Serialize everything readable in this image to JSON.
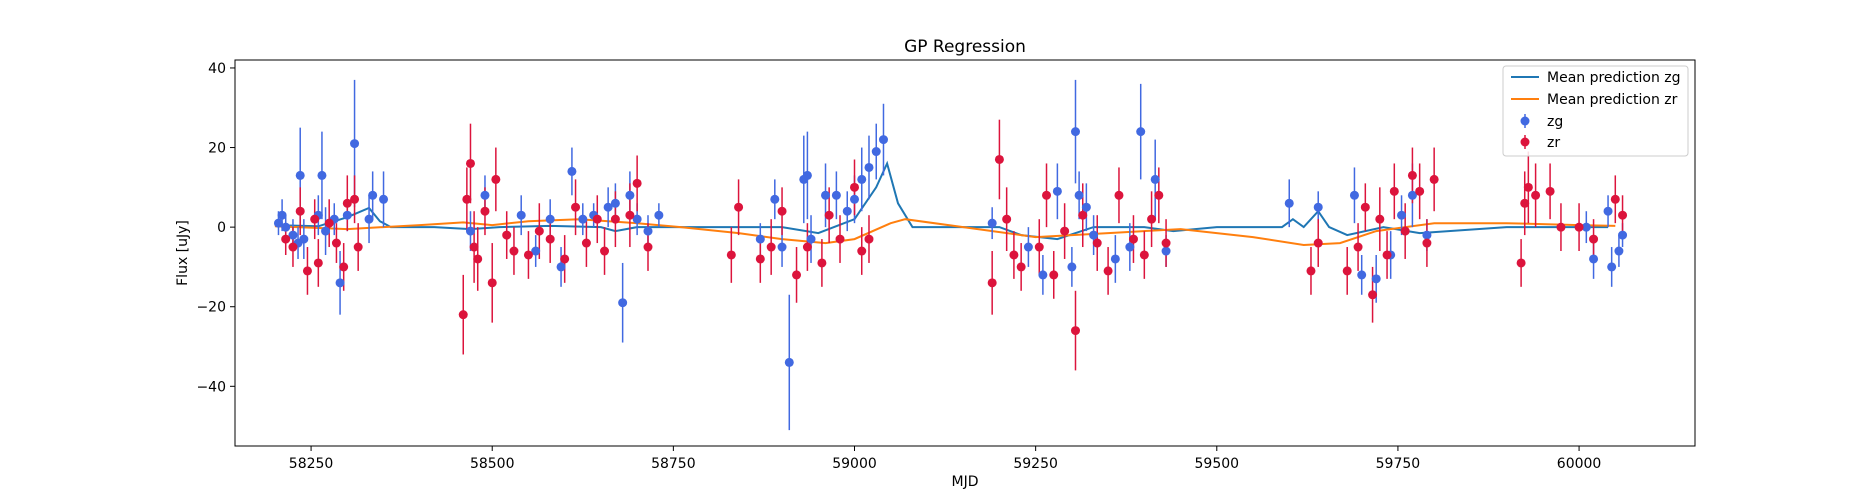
{
  "chart_data": {
    "type": "scatter",
    "title": "GP Regression",
    "xlabel": "MJD",
    "ylabel": "Flux [uJy]",
    "xlim": [
      58145,
      60160
    ],
    "ylim": [
      -55,
      42
    ],
    "xticks": [
      58250,
      58500,
      58750,
      59000,
      59250,
      59500,
      59750,
      60000
    ],
    "yticks": [
      -40,
      -20,
      0,
      20,
      40
    ],
    "ytick_labels": [
      "−40",
      "−20",
      "0",
      "20",
      "40"
    ],
    "grid": false,
    "legend_position": "top-right",
    "colors": {
      "zg_line": "#1f77b4",
      "zr_line": "#ff7f0e",
      "zg_points": "#4169e1",
      "zr_points": "#dc143c"
    },
    "lines": [
      {
        "name": "Mean prediction zg",
        "x": [
          58200,
          58260,
          58300,
          58330,
          58345,
          58360,
          58420,
          58470,
          58510,
          58580,
          58650,
          58670,
          58700,
          58760,
          58840,
          58900,
          58950,
          59000,
          59030,
          59045,
          59060,
          59080,
          59200,
          59230,
          59280,
          59330,
          59400,
          59440,
          59500,
          59590,
          59605,
          59620,
          59640,
          59655,
          59680,
          59730,
          59780,
          59900,
          60040
        ],
        "y": [
          0.5,
          0.2,
          2.5,
          4.8,
          1.5,
          0,
          0,
          -0.5,
          0,
          0.3,
          0,
          -1,
          0,
          0,
          0,
          0,
          -1.5,
          2,
          10,
          16,
          6,
          0,
          0,
          -2,
          -3,
          0,
          0,
          -1,
          0,
          0,
          2,
          0,
          4,
          0,
          -2,
          0,
          -1.5,
          0,
          0
        ]
      },
      {
        "name": "Mean prediction zr",
        "x": [
          58200,
          58300,
          58400,
          58460,
          58500,
          58550,
          58620,
          58700,
          58760,
          58840,
          58900,
          58960,
          59000,
          59050,
          59070,
          59150,
          59250,
          59350,
          59450,
          59550,
          59620,
          59670,
          59720,
          59800,
          59900,
          60000,
          60050
        ],
        "y": [
          0.2,
          -0.5,
          0.5,
          1.2,
          0.5,
          1.5,
          2,
          1,
          0,
          -1.5,
          -3,
          -4,
          -3,
          1,
          2,
          0,
          -2.5,
          -1.5,
          -0.5,
          -2.5,
          -4.5,
          -4,
          -1,
          1,
          1,
          0.5,
          0.3
        ]
      }
    ],
    "series": [
      {
        "name": "zg",
        "points": [
          [
            58205,
            1,
            3
          ],
          [
            58210,
            3,
            4
          ],
          [
            58215,
            0,
            3
          ],
          [
            58225,
            -2,
            4
          ],
          [
            58232,
            -4,
            4
          ],
          [
            58235,
            13,
            12
          ],
          [
            58240,
            -3,
            5
          ],
          [
            58260,
            3,
            5
          ],
          [
            58265,
            13,
            11
          ],
          [
            58270,
            -1,
            6
          ],
          [
            58282,
            2,
            4
          ],
          [
            58290,
            -14,
            8
          ],
          [
            58300,
            3,
            4
          ],
          [
            58310,
            21,
            16
          ],
          [
            58330,
            2,
            6
          ],
          [
            58335,
            8,
            6
          ],
          [
            58350,
            7,
            7
          ],
          [
            58470,
            -1,
            5
          ],
          [
            58490,
            8,
            5
          ],
          [
            58540,
            3,
            5
          ],
          [
            58560,
            -6,
            4
          ],
          [
            58580,
            2,
            5
          ],
          [
            58595,
            -10,
            5
          ],
          [
            58610,
            14,
            6
          ],
          [
            58625,
            2,
            4
          ],
          [
            58640,
            3,
            3
          ],
          [
            58660,
            5,
            5
          ],
          [
            58670,
            6,
            5
          ],
          [
            58680,
            -19,
            10
          ],
          [
            58690,
            8,
            6
          ],
          [
            58700,
            2,
            4
          ],
          [
            58715,
            -1,
            4
          ],
          [
            58730,
            3,
            3
          ],
          [
            58870,
            -3,
            4
          ],
          [
            58890,
            7,
            5
          ],
          [
            58900,
            -5,
            5
          ],
          [
            58910,
            -34,
            17
          ],
          [
            58930,
            12,
            11
          ],
          [
            58935,
            13,
            11
          ],
          [
            58940,
            -3,
            6
          ],
          [
            58960,
            8,
            8
          ],
          [
            58975,
            8,
            6
          ],
          [
            58990,
            4,
            5
          ],
          [
            59000,
            7,
            6
          ],
          [
            59010,
            12,
            8
          ],
          [
            59020,
            15,
            8
          ],
          [
            59030,
            19,
            7
          ],
          [
            59040,
            22,
            9
          ],
          [
            59190,
            1,
            4
          ],
          [
            59240,
            -5,
            5
          ],
          [
            59260,
            -12,
            5
          ],
          [
            59280,
            9,
            7
          ],
          [
            59300,
            -10,
            5
          ],
          [
            59305,
            24,
            13
          ],
          [
            59310,
            8,
            6
          ],
          [
            59320,
            5,
            6
          ],
          [
            59330,
            -2,
            5
          ],
          [
            59360,
            -8,
            6
          ],
          [
            59380,
            -5,
            6
          ],
          [
            59395,
            24,
            12
          ],
          [
            59415,
            12,
            10
          ],
          [
            59430,
            -6,
            4
          ],
          [
            59600,
            6,
            6
          ],
          [
            59640,
            5,
            4
          ],
          [
            59690,
            8,
            7
          ],
          [
            59700,
            -12,
            5
          ],
          [
            59720,
            -13,
            6
          ],
          [
            59740,
            -7,
            6
          ],
          [
            59755,
            3,
            5
          ],
          [
            59770,
            8,
            8
          ],
          [
            59790,
            -2,
            4
          ],
          [
            60010,
            0,
            4
          ],
          [
            60020,
            -8,
            5
          ],
          [
            60040,
            4,
            4
          ],
          [
            60045,
            -10,
            5
          ],
          [
            60055,
            -6,
            4
          ],
          [
            60060,
            -2,
            3
          ]
        ]
      },
      {
        "name": "zr",
        "points": [
          [
            58215,
            -3,
            4
          ],
          [
            58225,
            -5,
            5
          ],
          [
            58235,
            4,
            6
          ],
          [
            58245,
            -11,
            6
          ],
          [
            58255,
            2,
            5
          ],
          [
            58260,
            -9,
            6
          ],
          [
            58275,
            1,
            6
          ],
          [
            58285,
            -4,
            5
          ],
          [
            58295,
            -10,
            6
          ],
          [
            58300,
            6,
            7
          ],
          [
            58310,
            7,
            6
          ],
          [
            58315,
            -5,
            6
          ],
          [
            58460,
            -22,
            10
          ],
          [
            58465,
            7,
            8
          ],
          [
            58470,
            16,
            10
          ],
          [
            58475,
            -5,
            9
          ],
          [
            58480,
            -8,
            8
          ],
          [
            58490,
            4,
            6
          ],
          [
            58500,
            -14,
            10
          ],
          [
            58505,
            12,
            8
          ],
          [
            58520,
            -2,
            6
          ],
          [
            58530,
            -6,
            6
          ],
          [
            58550,
            -7,
            6
          ],
          [
            58565,
            -1,
            7
          ],
          [
            58580,
            -3,
            6
          ],
          [
            58600,
            -8,
            6
          ],
          [
            58615,
            5,
            7
          ],
          [
            58630,
            -4,
            6
          ],
          [
            58645,
            2,
            6
          ],
          [
            58655,
            -6,
            6
          ],
          [
            58670,
            2,
            7
          ],
          [
            58690,
            3,
            8
          ],
          [
            58700,
            11,
            7
          ],
          [
            58715,
            -5,
            6
          ],
          [
            58830,
            -7,
            7
          ],
          [
            58840,
            5,
            7
          ],
          [
            58870,
            -8,
            6
          ],
          [
            58885,
            -5,
            7
          ],
          [
            58900,
            4,
            6
          ],
          [
            58920,
            -12,
            7
          ],
          [
            58935,
            -5,
            6
          ],
          [
            58955,
            -9,
            6
          ],
          [
            58965,
            3,
            7
          ],
          [
            58980,
            -3,
            6
          ],
          [
            59000,
            10,
            7
          ],
          [
            59010,
            -6,
            6
          ],
          [
            59020,
            -3,
            6
          ],
          [
            59190,
            -14,
            8
          ],
          [
            59200,
            17,
            10
          ],
          [
            59210,
            2,
            8
          ],
          [
            59220,
            -7,
            6
          ],
          [
            59230,
            -10,
            6
          ],
          [
            59255,
            -5,
            7
          ],
          [
            59265,
            8,
            8
          ],
          [
            59275,
            -12,
            6
          ],
          [
            59290,
            -1,
            7
          ],
          [
            59305,
            -26,
            10
          ],
          [
            59315,
            3,
            8
          ],
          [
            59335,
            -4,
            7
          ],
          [
            59350,
            -11,
            6
          ],
          [
            59365,
            8,
            7
          ],
          [
            59385,
            -3,
            6
          ],
          [
            59400,
            -7,
            6
          ],
          [
            59410,
            2,
            7
          ],
          [
            59420,
            8,
            7
          ],
          [
            59430,
            -4,
            6
          ],
          [
            59630,
            -11,
            6
          ],
          [
            59640,
            -4,
            6
          ],
          [
            59680,
            -11,
            6
          ],
          [
            59695,
            -5,
            6
          ],
          [
            59705,
            5,
            6
          ],
          [
            59715,
            -17,
            7
          ],
          [
            59725,
            2,
            8
          ],
          [
            59735,
            -7,
            6
          ],
          [
            59745,
            9,
            7
          ],
          [
            59760,
            -1,
            7
          ],
          [
            59770,
            13,
            7
          ],
          [
            59780,
            9,
            7
          ],
          [
            59790,
            -4,
            6
          ],
          [
            59800,
            12,
            8
          ],
          [
            59920,
            -9,
            6
          ],
          [
            59925,
            6,
            8
          ],
          [
            59930,
            10,
            9
          ],
          [
            59940,
            8,
            8
          ],
          [
            59960,
            9,
            7
          ],
          [
            59975,
            0,
            6
          ],
          [
            60000,
            0,
            6
          ],
          [
            60020,
            -3,
            5
          ],
          [
            60050,
            7,
            6
          ],
          [
            60060,
            3,
            5
          ]
        ]
      }
    ]
  }
}
